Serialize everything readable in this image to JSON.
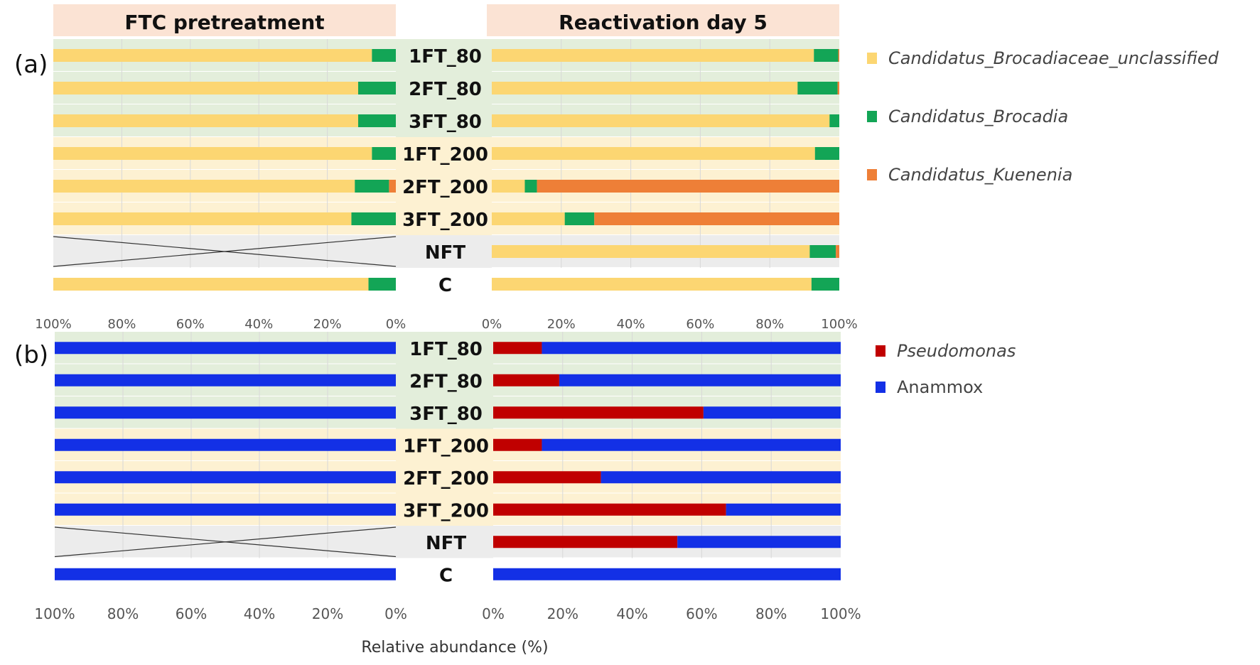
{
  "panel_labels": [
    "(a)",
    "(b)"
  ],
  "headers": {
    "left": "FTC pretreatment",
    "right": "Reactivation day 5"
  },
  "xlabel": "Relative abundance (%)",
  "colors": {
    "green_band": "#e3eedb",
    "yellow_band": "#fdf1d2",
    "gray_band": "#ececec",
    "header_bg": "#fbe3d4",
    "brocadiaceae": "#fcd672",
    "brocadia": "#13a556",
    "kuenenia": "#ee7f37",
    "pseudomonas": "#c00000",
    "anammox": "#1330e6"
  },
  "chart_data": [
    {
      "type": "bar",
      "stacked": true,
      "orientation": "horizontal",
      "panel": "(a)",
      "categories": [
        "1FT_80",
        "2FT_80",
        "3FT_80",
        "1FT_200",
        "2FT_200",
        "3FT_200",
        "NFT",
        "C"
      ],
      "legend": [
        "Candidatus_Brocadiaceae_unclassified",
        "Candidatus_Brocadia",
        "Candidatus_Kuenenia"
      ],
      "legend_italic": true,
      "legend_position": "right",
      "xlim": [
        0,
        100
      ],
      "ticks": [
        "0%",
        "20%",
        "40%",
        "60%",
        "80%",
        "100%"
      ],
      "left": {
        "title": "FTC pretreatment",
        "reversed": true,
        "series": [
          {
            "name": "Candidatus_Kuenenia",
            "values": [
              0,
              0,
              0,
              0,
              2,
              0,
              null,
              0
            ]
          },
          {
            "name": "Candidatus_Brocadia",
            "values": [
              7,
              11,
              11,
              7,
              10,
              13,
              null,
              8
            ]
          },
          {
            "name": "Candidatus_Brocadiaceae_unclassified",
            "values": [
              93,
              89,
              89,
              93,
              88,
              87,
              null,
              92
            ]
          }
        ]
      },
      "right": {
        "title": "Reactivation day 5",
        "reversed": false,
        "series": [
          {
            "name": "Candidatus_Brocadiaceae_unclassified",
            "values": [
              92.7,
              88,
              97.2,
              93,
              9.5,
              21,
              91.5,
              92
            ]
          },
          {
            "name": "Candidatus_Brocadia",
            "values": [
              7,
              11.5,
              2.8,
              7,
              3.5,
              8.5,
              7.5,
              8
            ]
          },
          {
            "name": "Candidatus_Kuenenia",
            "values": [
              0.3,
              0.5,
              0,
              0,
              87,
              70.5,
              1,
              0
            ]
          }
        ]
      }
    },
    {
      "type": "bar",
      "stacked": true,
      "orientation": "horizontal",
      "panel": "(b)",
      "categories": [
        "1FT_80",
        "2FT_80",
        "3FT_80",
        "1FT_200",
        "2FT_200",
        "3FT_200",
        "NFT",
        "C"
      ],
      "legend": [
        "Pseudomonas",
        "Anammox"
      ],
      "legend_italic_first": true,
      "legend_position": "right",
      "xlim": [
        0,
        100
      ],
      "ticks": [
        "0%",
        "20%",
        "40%",
        "60%",
        "80%",
        "100%"
      ],
      "left": {
        "title": "FTC pretreatment",
        "reversed": true,
        "series": [
          {
            "name": "Pseudomonas",
            "values": [
              0,
              0,
              0,
              0,
              0,
              0,
              null,
              0
            ]
          },
          {
            "name": "Anammox",
            "values": [
              100,
              100,
              100,
              100,
              100,
              100,
              null,
              100
            ]
          }
        ]
      },
      "right": {
        "title": "Reactivation day 5",
        "reversed": false,
        "series": [
          {
            "name": "Pseudomonas",
            "values": [
              14,
              19,
              60.5,
              14,
              31,
              67,
              53,
              0
            ]
          },
          {
            "name": "Anammox",
            "values": [
              86,
              81,
              39.5,
              86,
              69,
              33,
              47,
              100
            ]
          }
        ]
      }
    }
  ]
}
